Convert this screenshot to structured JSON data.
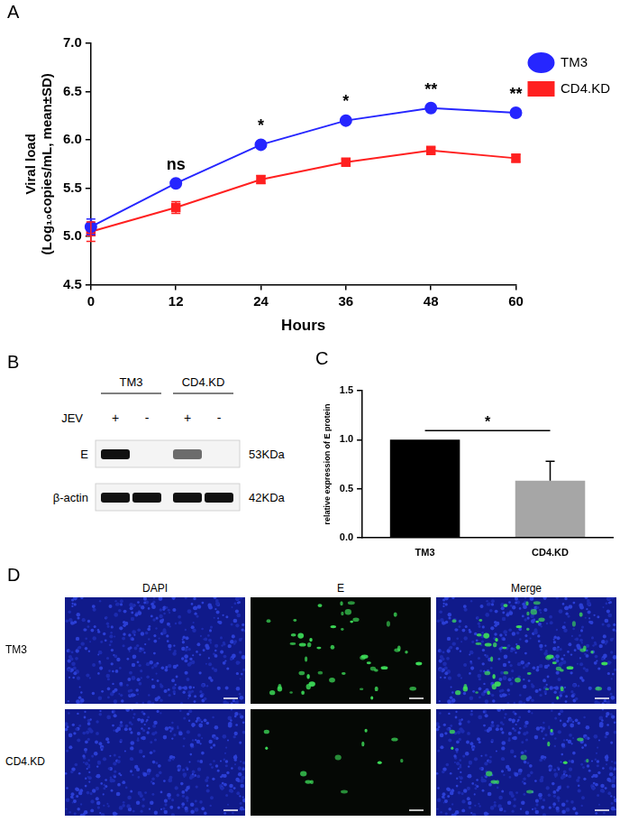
{
  "panel_labels": [
    "A",
    "B",
    "C",
    "D"
  ],
  "chart_data": [
    {
      "type": "line",
      "xlabel": "Hours",
      "ylabel": [
        "Viral load",
        "(Log₁₀copies/mL, mean±SD)"
      ],
      "x": [
        0,
        12,
        24,
        36,
        48,
        60
      ],
      "series": [
        {
          "name": "TM3",
          "color": "#2626ff",
          "marker": "circle",
          "values": [
            5.1,
            5.55,
            5.95,
            6.2,
            6.33,
            6.28
          ],
          "errors": [
            0.08,
            0.02,
            0.02,
            0.02,
            0.02,
            0.02
          ]
        },
        {
          "name": "CD4.KD",
          "color": "#ff2020",
          "marker": "square",
          "values": [
            5.05,
            5.3,
            5.59,
            5.77,
            5.89,
            5.81
          ],
          "errors": [
            0.1,
            0.06,
            0.04,
            0.03,
            0.03,
            0.04
          ]
        }
      ],
      "xlim": [
        0,
        60
      ],
      "xticks": [
        0,
        12,
        24,
        36,
        48,
        60
      ],
      "ylim": [
        4.5,
        7
      ],
      "yticks": [
        4.5,
        {
          "value": 5,
          "label": "5.0"
        },
        5.5,
        {
          "value": 6,
          "label": "6.0"
        },
        6.5,
        {
          "value": 7,
          "label": "7.0"
        }
      ],
      "grid": false,
      "legend": "right",
      "annotations": [
        {
          "x": 12,
          "text": "ns"
        },
        {
          "x": 24,
          "text": "*"
        },
        {
          "x": 36,
          "text": "*"
        },
        {
          "x": 48,
          "text": "**"
        },
        {
          "x": 60,
          "text": "**"
        }
      ]
    },
    {
      "type": "bar",
      "categories": [
        "TM3",
        "CD4.KD"
      ],
      "values": [
        1.0,
        0.58
      ],
      "errors": [
        0,
        0.2
      ],
      "colors": [
        "#000000",
        "#a6a6a6"
      ],
      "ylabel": "relative expression of E protein",
      "ylim": [
        0,
        1.5
      ],
      "yticks": [
        {
          "value": 0,
          "label": "0.0"
        },
        0.5,
        {
          "value": 1,
          "label": "1.0"
        },
        1.5
      ],
      "grid": false,
      "significance": [
        {
          "from": "TM3",
          "to": "CD4.KD",
          "text": "*"
        }
      ]
    }
  ],
  "blot": {
    "groups": [
      "TM3",
      "CD4.KD"
    ],
    "treatment": {
      "label": "JEV",
      "lanes": [
        "+",
        "-",
        "+",
        "-"
      ]
    },
    "rows": [
      {
        "label": "E",
        "size": "53KDa",
        "intensity": [
          1.0,
          0,
          0.6,
          0
        ]
      },
      {
        "label": "β-actin",
        "size": "42KDa",
        "intensity": [
          1.0,
          1.0,
          1.0,
          1.0
        ]
      }
    ]
  },
  "images": {
    "columns": [
      "DAPI",
      "E",
      "Merge"
    ],
    "rows": [
      "TM3",
      "CD4.KD"
    ]
  }
}
